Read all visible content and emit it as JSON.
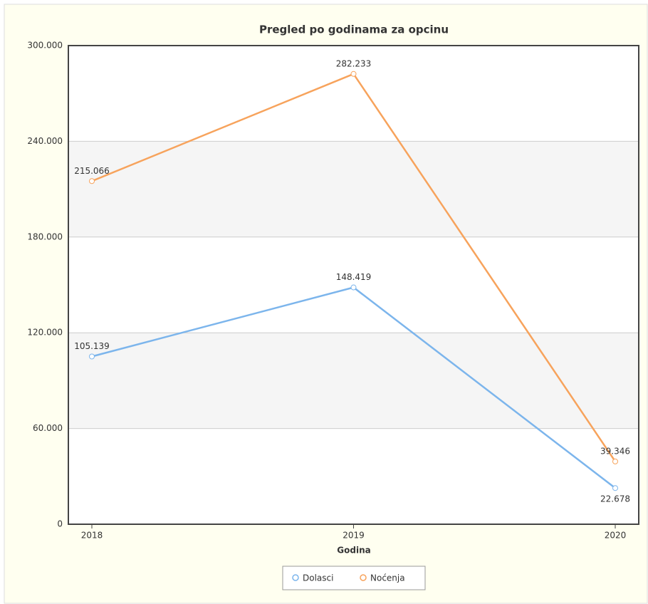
{
  "chart_data": {
    "type": "line",
    "title": "Pregled po godinama za opcinu",
    "x_label": "Godina",
    "categories": [
      "2018",
      "2019",
      "2020"
    ],
    "series": [
      {
        "name": "Dolasci",
        "color": "#7cb5ec",
        "values": [
          105139,
          148419,
          22678
        ],
        "value_labels": [
          "105.139",
          "148.419",
          "22.678"
        ]
      },
      {
        "name": "Noćenja",
        "color": "#f7a35c",
        "values": [
          215066,
          282233,
          39346
        ],
        "value_labels": [
          "215.066",
          "282.233",
          "39.346"
        ]
      }
    ],
    "ylim": [
      0,
      300000
    ],
    "yticks": [
      0,
      {
        "value": 60000,
        "label": "60.000"
      },
      {
        "value": 120000,
        "label": "120.000"
      },
      {
        "value": 180000,
        "label": "180.000"
      },
      {
        "value": 240000,
        "label": "240.000"
      },
      {
        "value": 300000,
        "label": "300.000"
      }
    ],
    "grid": true,
    "legend": "bottom"
  }
}
